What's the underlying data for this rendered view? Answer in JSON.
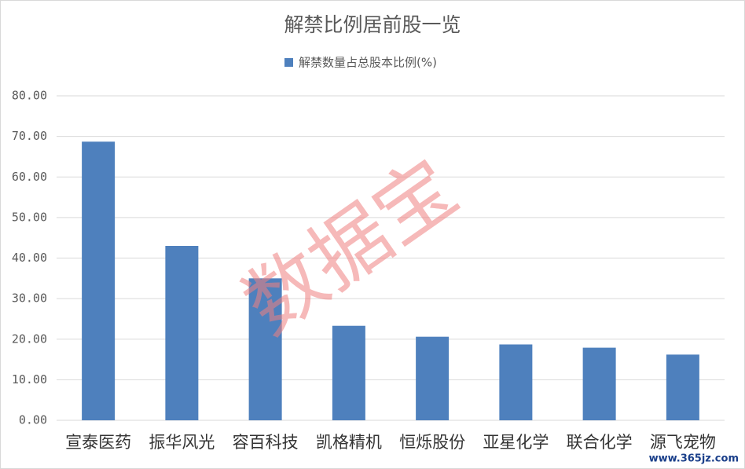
{
  "chart_data": {
    "type": "bar",
    "title": "解禁比例居前股一览",
    "series": [
      {
        "name": "解禁数量占总股本比例(%)",
        "color": "#4e80bd",
        "values": [
          68.7,
          43.0,
          35.0,
          23.3,
          20.6,
          18.7,
          17.9,
          16.2
        ]
      }
    ],
    "categories": [
      "宣泰医药",
      "振华风光",
      "容百科技",
      "凯格精机",
      "恒烁股份",
      "亚星化学",
      "联合化学",
      "源飞宠物"
    ],
    "ylim": [
      0,
      80
    ],
    "yticks": [
      {
        "value": 0,
        "label": "0.00"
      },
      {
        "value": 10,
        "label": "10.00"
      },
      {
        "value": 20,
        "label": "20.00"
      },
      {
        "value": 30,
        "label": "30.00"
      },
      {
        "value": 40,
        "label": "40.00"
      },
      {
        "value": 50,
        "label": "50.00"
      },
      {
        "value": 60,
        "label": "60.00"
      },
      {
        "value": 70,
        "label": "70.00"
      },
      {
        "value": 80,
        "label": "80.00"
      }
    ],
    "grid": true,
    "legend": "top",
    "watermark": "数据宝",
    "footer": "www.365jz.com"
  }
}
